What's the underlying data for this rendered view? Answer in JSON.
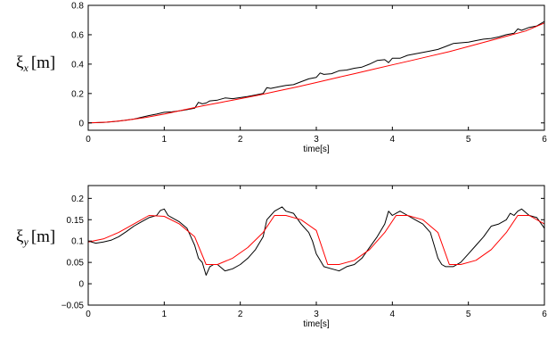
{
  "chart_data": [
    {
      "type": "line",
      "ylabel_symbol": "ξ",
      "ylabel_subscript": "x",
      "ylabel_unit": "[m]",
      "xlabel": "time[s]",
      "xlim": [
        0,
        6
      ],
      "ylim": [
        -0.05,
        0.8
      ],
      "xticks": [
        "0",
        "1",
        "2",
        "3",
        "4",
        "5",
        "6"
      ],
      "yticks": [
        "0",
        "0.2",
        "0.4",
        "0.6",
        "0.8"
      ],
      "grid": false,
      "series": [
        {
          "color": "#000000",
          "x": [
            0,
            0.2,
            0.4,
            0.6,
            0.8,
            0.9,
            1.0,
            1.1,
            1.2,
            1.3,
            1.4,
            1.45,
            1.5,
            1.55,
            1.6,
            1.7,
            1.8,
            1.9,
            2.0,
            2.1,
            2.2,
            2.3,
            2.35,
            2.4,
            2.5,
            2.6,
            2.7,
            2.8,
            2.9,
            3.0,
            3.05,
            3.1,
            3.2,
            3.3,
            3.4,
            3.5,
            3.6,
            3.7,
            3.8,
            3.9,
            3.95,
            4.0,
            4.1,
            4.2,
            4.3,
            4.4,
            4.5,
            4.6,
            4.7,
            4.75,
            4.8,
            4.9,
            5.0,
            5.1,
            5.2,
            5.3,
            5.4,
            5.5,
            5.6,
            5.65,
            5.7,
            5.8,
            5.9,
            6.0
          ],
          "y": [
            0.0,
            0.003,
            0.012,
            0.026,
            0.05,
            0.06,
            0.072,
            0.075,
            0.082,
            0.09,
            0.1,
            0.14,
            0.13,
            0.135,
            0.15,
            0.155,
            0.17,
            0.165,
            0.172,
            0.18,
            0.19,
            0.2,
            0.24,
            0.235,
            0.245,
            0.255,
            0.26,
            0.28,
            0.3,
            0.31,
            0.34,
            0.33,
            0.335,
            0.355,
            0.36,
            0.372,
            0.38,
            0.4,
            0.425,
            0.43,
            0.41,
            0.44,
            0.44,
            0.46,
            0.47,
            0.48,
            0.49,
            0.5,
            0.52,
            0.53,
            0.54,
            0.545,
            0.55,
            0.56,
            0.57,
            0.575,
            0.585,
            0.6,
            0.61,
            0.64,
            0.63,
            0.65,
            0.66,
            0.69
          ]
        },
        {
          "color": "#ff0000",
          "x": [
            0,
            0.25,
            0.5,
            0.75,
            1.0,
            1.25,
            1.5,
            1.75,
            2.0,
            2.25,
            2.5,
            2.75,
            3.0,
            3.25,
            3.5,
            3.75,
            4.0,
            4.25,
            4.5,
            4.75,
            5.0,
            5.25,
            5.5,
            5.75,
            6.0
          ],
          "y": [
            0.0,
            0.005,
            0.018,
            0.037,
            0.06,
            0.088,
            0.115,
            0.14,
            0.165,
            0.19,
            0.218,
            0.245,
            0.275,
            0.305,
            0.335,
            0.365,
            0.395,
            0.425,
            0.455,
            0.485,
            0.52,
            0.555,
            0.59,
            0.625,
            0.68
          ]
        }
      ]
    },
    {
      "type": "line",
      "ylabel_symbol": "ξ",
      "ylabel_subscript": "y",
      "ylabel_unit": "[m]",
      "xlabel": "time[s]",
      "xlim": [
        0,
        6
      ],
      "ylim": [
        -0.05,
        0.23
      ],
      "xticks": [
        "0",
        "1",
        "2",
        "3",
        "4",
        "5",
        "6"
      ],
      "yticks": [
        "−0.05",
        "0",
        "0.05",
        "0.1",
        "0.15",
        "0.2"
      ],
      "grid": false,
      "series": [
        {
          "color": "#000000",
          "x": [
            0,
            0.1,
            0.2,
            0.3,
            0.4,
            0.5,
            0.6,
            0.7,
            0.8,
            0.9,
            0.95,
            1.0,
            1.05,
            1.1,
            1.2,
            1.3,
            1.35,
            1.4,
            1.45,
            1.5,
            1.55,
            1.6,
            1.65,
            1.7,
            1.8,
            1.9,
            2.0,
            2.1,
            2.2,
            2.3,
            2.35,
            2.4,
            2.45,
            2.5,
            2.55,
            2.6,
            2.7,
            2.8,
            2.9,
            2.95,
            3.0,
            3.05,
            3.1,
            3.2,
            3.3,
            3.4,
            3.5,
            3.6,
            3.7,
            3.8,
            3.9,
            3.95,
            4.0,
            4.05,
            4.1,
            4.2,
            4.3,
            4.4,
            4.5,
            4.55,
            4.6,
            4.65,
            4.7,
            4.8,
            4.9,
            5.0,
            5.1,
            5.2,
            5.3,
            5.4,
            5.5,
            5.55,
            5.6,
            5.65,
            5.7,
            5.8,
            5.9,
            6.0
          ],
          "y": [
            0.1,
            0.095,
            0.098,
            0.102,
            0.11,
            0.122,
            0.135,
            0.145,
            0.155,
            0.16,
            0.172,
            0.175,
            0.16,
            0.155,
            0.145,
            0.13,
            0.11,
            0.09,
            0.06,
            0.05,
            0.02,
            0.04,
            0.045,
            0.045,
            0.03,
            0.035,
            0.045,
            0.06,
            0.08,
            0.11,
            0.15,
            0.16,
            0.17,
            0.175,
            0.18,
            0.17,
            0.165,
            0.14,
            0.12,
            0.1,
            0.07,
            0.055,
            0.04,
            0.035,
            0.03,
            0.04,
            0.045,
            0.06,
            0.085,
            0.11,
            0.14,
            0.17,
            0.16,
            0.165,
            0.17,
            0.16,
            0.15,
            0.14,
            0.12,
            0.09,
            0.06,
            0.045,
            0.04,
            0.04,
            0.05,
            0.07,
            0.09,
            0.11,
            0.135,
            0.14,
            0.15,
            0.165,
            0.16,
            0.17,
            0.175,
            0.16,
            0.155,
            0.13
          ]
        },
        {
          "color": "#ff0000",
          "x": [
            0,
            0.2,
            0.4,
            0.6,
            0.8,
            1.0,
            1.2,
            1.4,
            1.55,
            1.7,
            1.9,
            2.1,
            2.3,
            2.45,
            2.6,
            2.8,
            3.0,
            3.15,
            3.3,
            3.5,
            3.7,
            3.9,
            4.05,
            4.2,
            4.4,
            4.6,
            4.75,
            4.9,
            5.1,
            5.3,
            5.5,
            5.65,
            5.8,
            6.0
          ],
          "y": [
            0.098,
            0.105,
            0.12,
            0.14,
            0.16,
            0.158,
            0.14,
            0.11,
            0.045,
            0.045,
            0.06,
            0.085,
            0.12,
            0.16,
            0.16,
            0.15,
            0.125,
            0.045,
            0.045,
            0.055,
            0.08,
            0.12,
            0.16,
            0.16,
            0.15,
            0.12,
            0.045,
            0.045,
            0.055,
            0.08,
            0.12,
            0.16,
            0.16,
            0.14
          ]
        }
      ]
    }
  ]
}
